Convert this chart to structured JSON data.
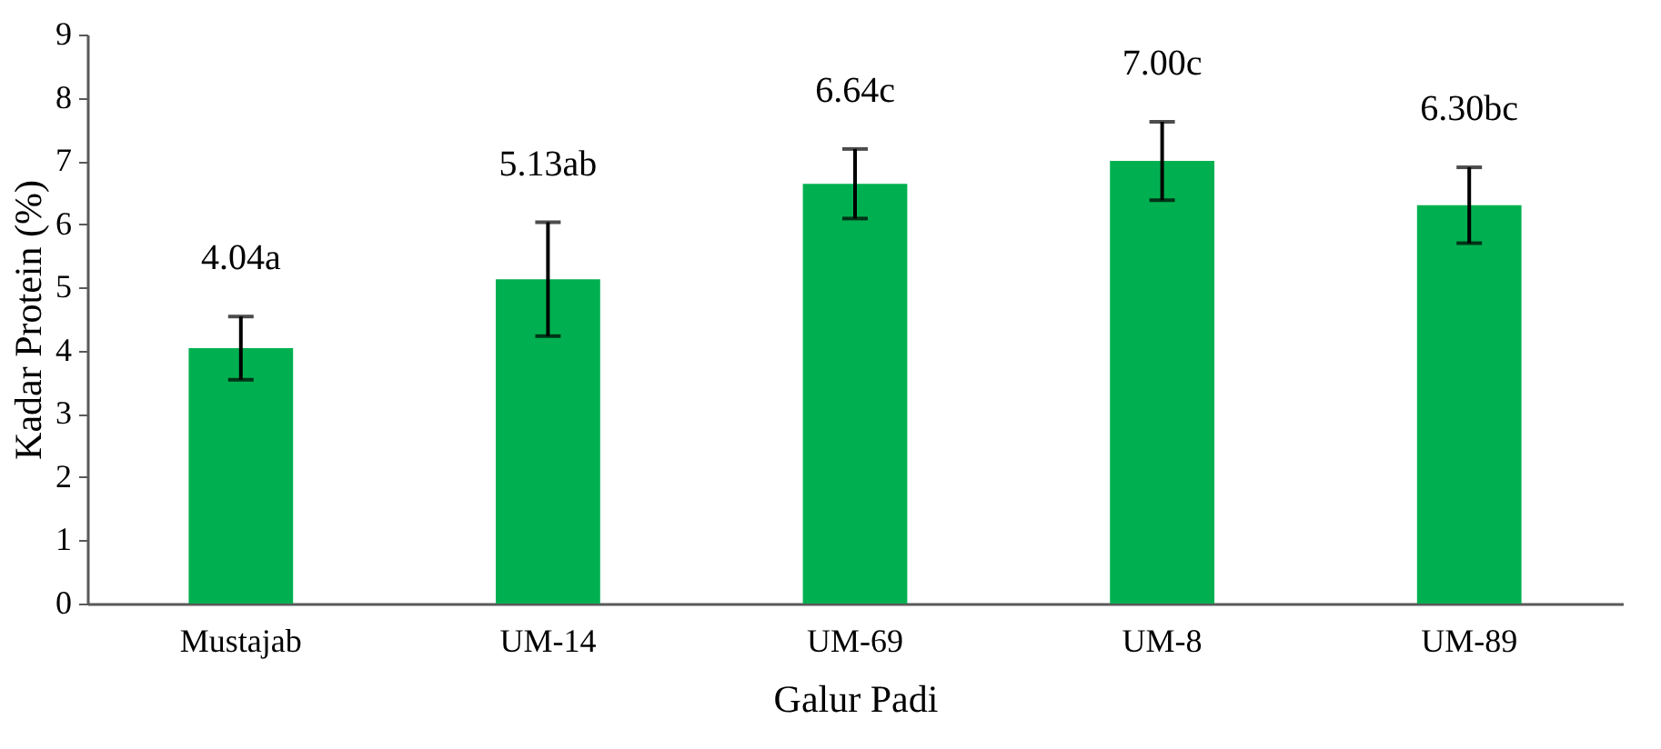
{
  "chart_data": {
    "type": "bar",
    "xlabel": "Galur Padi",
    "ylabel": "Kadar Protein (%)",
    "categories": [
      "Mustajab",
      "UM-14",
      "UM-69",
      "UM-8",
      "UM-89"
    ],
    "values": [
      4.04,
      5.13,
      6.64,
      7.0,
      6.3
    ],
    "errors": [
      0.5,
      0.9,
      0.55,
      0.62,
      0.6
    ],
    "value_labels": [
      "4.04a",
      "5.13ab",
      "6.64c",
      "7.00c",
      "6.30bc"
    ],
    "color": "#00b050",
    "ylim": [
      0,
      9
    ],
    "yticks": [
      0,
      1,
      2,
      3,
      4,
      5,
      6,
      7,
      8,
      9
    ],
    "grid": false
  }
}
